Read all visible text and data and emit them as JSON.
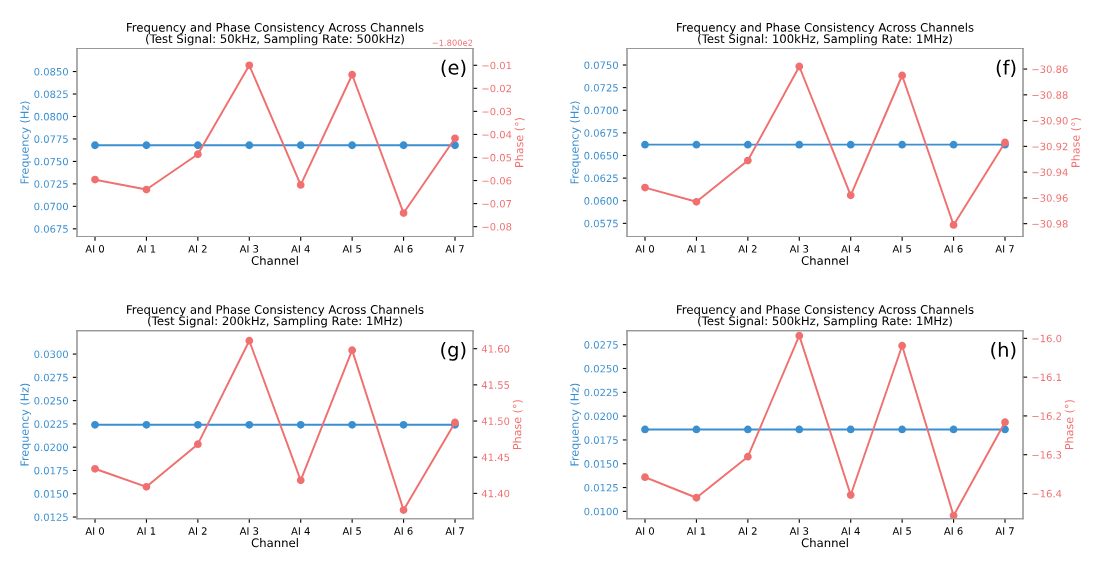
{
  "chart_data": [
    {
      "type": "line",
      "title": "Frequency and Phase Consistency Across Channels\n(Test Signal: 50kHz, Sampling Rate: 500kHz)",
      "xlabel": "Channel",
      "ylabel": "Frequency (Hz)",
      "y2label": "Phase (°)",
      "categories": [
        "AI 0",
        "AI 1",
        "AI 2",
        "AI 3",
        "AI 4",
        "AI 5",
        "AI 6",
        "AI 7"
      ],
      "marker": "circle",
      "annotations": [
        "(e)",
        "−1.800e2"
      ],
      "series": [
        {
          "color": "#3a8fd0",
          "values": [
            0.0768,
            0.0768,
            0.0768,
            0.0768,
            0.0768,
            0.0768,
            0.0768,
            0.0768
          ]
        },
        {
          "color": "#f07070",
          "axis": "y2",
          "values": [
            -0.0596,
            -0.0639,
            -0.0486,
            -0.01,
            -0.0619,
            -0.0141,
            -0.0741,
            -0.0417
          ]
        }
      ],
      "ylim": [
        0.06664,
        0.08757
      ],
      "yticks": [
        {
          "value": 0.0675,
          "label": "0.0675"
        },
        {
          "value": 0.07,
          "label": "0.0700"
        },
        {
          "value": 0.0725,
          "label": "0.0725"
        },
        {
          "value": 0.075,
          "label": "0.0750"
        },
        {
          "value": 0.0775,
          "label": "0.0775"
        },
        {
          "value": 0.08,
          "label": "0.0800"
        },
        {
          "value": 0.0825,
          "label": "0.0825"
        },
        {
          "value": 0.085,
          "label": "0.0850"
        }
      ],
      "y2lim": [
        -0.0843,
        -0.0027
      ],
      "y2ticks": [
        {
          "value": -0.08,
          "label": "−0.08"
        },
        {
          "value": -0.07,
          "label": "−0.07"
        },
        {
          "value": -0.06,
          "label": "−0.06"
        },
        {
          "value": -0.05,
          "label": "−0.05"
        },
        {
          "value": -0.04,
          "label": "−0.04"
        },
        {
          "value": -0.03,
          "label": "−0.03"
        },
        {
          "value": -0.02,
          "label": "−0.02"
        },
        {
          "value": -0.01,
          "label": "−0.01"
        }
      ]
    },
    {
      "type": "line",
      "title": "Frequency and Phase Consistency Across Channels\n(Test Signal: 100kHz, Sampling Rate: 1MHz)",
      "xlabel": "Channel",
      "ylabel": "Frequency (Hz)",
      "y2label": "Phase (°)",
      "categories": [
        "AI 0",
        "AI 1",
        "AI 2",
        "AI 3",
        "AI 4",
        "AI 5",
        "AI 6",
        "AI 7"
      ],
      "marker": "circle",
      "annotations": [
        "(f)"
      ],
      "series": [
        {
          "color": "#3a8fd0",
          "values": [
            0.0662,
            0.0662,
            0.0662,
            0.0662,
            0.0662,
            0.0662,
            0.0662,
            0.0662
          ]
        },
        {
          "color": "#f07070",
          "axis": "y2",
          "values": [
            -30.952,
            -30.963,
            -30.931,
            -30.858,
            -30.958,
            -30.865,
            -30.981,
            -30.917
          ]
        }
      ],
      "ylim": [
        0.05604,
        0.07683
      ],
      "yticks": [
        {
          "value": 0.0575,
          "label": "0.0575"
        },
        {
          "value": 0.06,
          "label": "0.0600"
        },
        {
          "value": 0.0625,
          "label": "0.0625"
        },
        {
          "value": 0.065,
          "label": "0.0650"
        },
        {
          "value": 0.0675,
          "label": "0.0675"
        },
        {
          "value": 0.07,
          "label": "0.0700"
        },
        {
          "value": 0.0725,
          "label": "0.0725"
        },
        {
          "value": 0.075,
          "label": "0.0750"
        }
      ],
      "y2lim": [
        -30.99,
        -30.844
      ],
      "y2ticks": [
        {
          "value": -30.98,
          "label": "−30.98"
        },
        {
          "value": -30.96,
          "label": "−30.96"
        },
        {
          "value": -30.94,
          "label": "−30.94"
        },
        {
          "value": -30.92,
          "label": "−30.92"
        },
        {
          "value": -30.9,
          "label": "−30.90"
        },
        {
          "value": -30.88,
          "label": "−30.88"
        },
        {
          "value": -30.86,
          "label": "−30.86"
        }
      ]
    },
    {
      "type": "line",
      "title": "Frequency and Phase Consistency Across Channels\n(Test Signal: 200kHz, Sampling Rate: 1MHz)",
      "xlabel": "Channel",
      "ylabel": "Frequency (Hz)",
      "y2label": "Phase (°)",
      "categories": [
        "AI 0",
        "AI 1",
        "AI 2",
        "AI 3",
        "AI 4",
        "AI 5",
        "AI 6",
        "AI 7"
      ],
      "marker": "circle",
      "annotations": [
        "(g)"
      ],
      "series": [
        {
          "color": "#3a8fd0",
          "values": [
            0.0224,
            0.0224,
            0.0224,
            0.0224,
            0.0224,
            0.0224,
            0.0224,
            0.0224
          ]
        },
        {
          "color": "#f07070",
          "axis": "y2",
          "values": [
            41.434,
            41.409,
            41.468,
            41.611,
            41.418,
            41.598,
            41.377,
            41.498
          ]
        }
      ],
      "ylim": [
        0.01232,
        0.03252
      ],
      "yticks": [
        {
          "value": 0.0125,
          "label": "0.0125"
        },
        {
          "value": 0.015,
          "label": "0.0150"
        },
        {
          "value": 0.0175,
          "label": "0.0175"
        },
        {
          "value": 0.02,
          "label": "0.0200"
        },
        {
          "value": 0.0225,
          "label": "0.0225"
        },
        {
          "value": 0.025,
          "label": "0.0250"
        },
        {
          "value": 0.0275,
          "label": "0.0275"
        },
        {
          "value": 0.03,
          "label": "0.0300"
        }
      ],
      "y2lim": [
        41.365,
        41.625
      ],
      "y2ticks": [
        {
          "value": 41.4,
          "label": "41.40"
        },
        {
          "value": 41.45,
          "label": "41.45"
        },
        {
          "value": 41.5,
          "label": "41.50"
        },
        {
          "value": 41.55,
          "label": "41.55"
        },
        {
          "value": 41.6,
          "label": "41.60"
        }
      ]
    },
    {
      "type": "line",
      "title": "Frequency and Phase Consistency Across Channels\n(Test Signal: 500kHz, Sampling Rate: 1MHz)",
      "xlabel": "Channel",
      "ylabel": "Frequency (Hz)",
      "y2label": "Phase (°)",
      "categories": [
        "AI 0",
        "AI 1",
        "AI 2",
        "AI 3",
        "AI 4",
        "AI 5",
        "AI 6",
        "AI 7"
      ],
      "marker": "circle",
      "annotations": [
        "(h)"
      ],
      "series": [
        {
          "color": "#3a8fd0",
          "values": [
            0.0186,
            0.0186,
            0.0186,
            0.0186,
            0.0186,
            0.0186,
            0.0186,
            0.0186
          ]
        },
        {
          "color": "#f07070",
          "axis": "y2",
          "values": [
            -16.358,
            -16.411,
            -16.305,
            -15.993,
            -16.404,
            -16.019,
            -16.457,
            -16.216
          ]
        }
      ],
      "ylim": [
        0.00923,
        0.02898
      ],
      "yticks": [
        {
          "value": 0.01,
          "label": "0.0100"
        },
        {
          "value": 0.0125,
          "label": "0.0125"
        },
        {
          "value": 0.015,
          "label": "0.0150"
        },
        {
          "value": 0.0175,
          "label": "0.0175"
        },
        {
          "value": 0.02,
          "label": "0.0200"
        },
        {
          "value": 0.0225,
          "label": "0.0225"
        },
        {
          "value": 0.025,
          "label": "0.0250"
        },
        {
          "value": 0.0275,
          "label": "0.0275"
        }
      ],
      "y2lim": [
        -16.465,
        -15.98
      ],
      "y2ticks": [
        {
          "value": -16.4,
          "label": "−16.4"
        },
        {
          "value": -16.3,
          "label": "−16.3"
        },
        {
          "value": -16.2,
          "label": "−16.2"
        },
        {
          "value": -16.1,
          "label": "−16.1"
        },
        {
          "value": -16.0,
          "label": "−16.0"
        }
      ]
    }
  ]
}
